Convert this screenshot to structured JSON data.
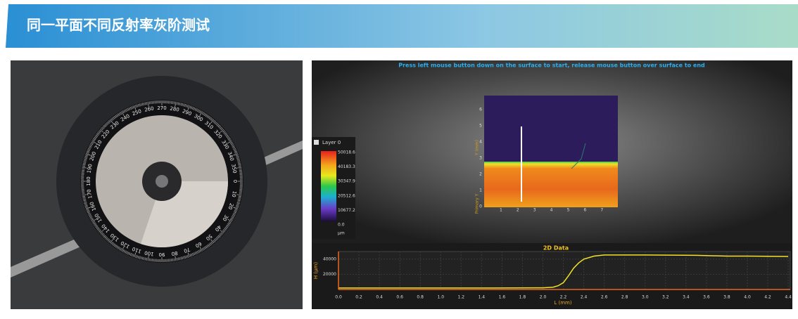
{
  "header": {
    "title": "同一平面不同反射率灰阶测试"
  },
  "photo": {
    "dial_labels": [
      0,
      10,
      20,
      30,
      40,
      50,
      60,
      70,
      80,
      90,
      100,
      110,
      120,
      130,
      140,
      150,
      160,
      170,
      180,
      190,
      200,
      210,
      220,
      230,
      240,
      250,
      260,
      270,
      280,
      290,
      300,
      310,
      320,
      330,
      340,
      350
    ]
  },
  "software": {
    "instruction": "Press left mouse button down on the surface to start, release mouse button over surface to end",
    "layer": "Layer 0",
    "colorbar_labels": [
      "50018.6",
      "40183.3",
      "30347.9",
      "20512.6",
      "10677.2",
      "0.0"
    ],
    "colorbar_unit": "μm",
    "map": {
      "y_ticks": [
        "0",
        "1",
        "2",
        "3",
        "4",
        "5",
        "6"
      ],
      "x_ticks": [
        "1",
        "2",
        "3",
        "4",
        "5",
        "6",
        "7"
      ],
      "y_label": "Y (mm)",
      "y_label2": "Primary Y"
    },
    "profile": {
      "type": "line",
      "title": "2D Data",
      "x_label": "L (mm)",
      "y_label": "H (μm)",
      "color": "#f2e229",
      "xlim": [
        0,
        4.42
      ],
      "ylim": [
        0,
        50000
      ],
      "xticks": [
        {
          "value": 0,
          "label": "0.0"
        },
        {
          "value": 0.2,
          "label": "0.2"
        },
        {
          "value": 0.4,
          "label": "0.4"
        },
        {
          "value": 0.6,
          "label": "0.6"
        },
        {
          "value": 0.8,
          "label": "0.8"
        },
        {
          "value": 1,
          "label": "1.0"
        },
        {
          "value": 1.2,
          "label": "1.2"
        },
        {
          "value": 1.4,
          "label": "1.4"
        },
        {
          "value": 1.6,
          "label": "1.6"
        },
        {
          "value": 1.8,
          "label": "1.8"
        },
        {
          "value": 2,
          "label": "2.0"
        },
        {
          "value": 2.2,
          "label": "2.2"
        },
        {
          "value": 2.4,
          "label": "2.4"
        },
        {
          "value": 2.6,
          "label": "2.6"
        },
        {
          "value": 2.8,
          "label": "2.8"
        },
        {
          "value": 3,
          "label": "3.0"
        },
        {
          "value": 3.2,
          "label": "3.2"
        },
        {
          "value": 3.4,
          "label": "3.4"
        },
        {
          "value": 3.6,
          "label": "3.6"
        },
        {
          "value": 3.8,
          "label": "3.8"
        },
        {
          "value": 4,
          "label": "4.0"
        },
        {
          "value": 4.2,
          "label": "4.2"
        },
        {
          "value": 4.4,
          "label": "4.4"
        }
      ],
      "yticks": [
        20000,
        40000
      ],
      "x": [
        0,
        0.5,
        1,
        1.5,
        2,
        2.1,
        2.15,
        2.2,
        2.25,
        2.3,
        2.35,
        2.4,
        2.5,
        2.6,
        3,
        3.5,
        3.8,
        4,
        4.4
      ],
      "values": [
        2000,
        2000,
        2000,
        2000,
        2200,
        3000,
        5000,
        9000,
        18000,
        28000,
        35000,
        40000,
        44000,
        45500,
        45500,
        45000,
        44000,
        44000,
        43500
      ]
    }
  }
}
